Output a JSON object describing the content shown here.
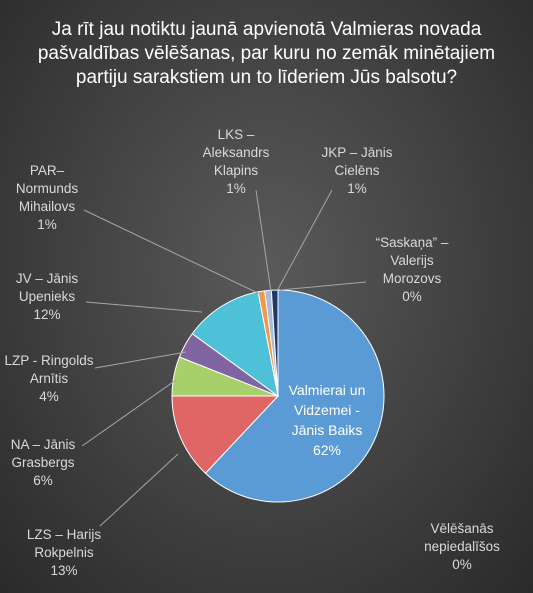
{
  "chart_data": {
    "type": "pie",
    "title_lines": [
      "Ja rīt jau notiktu jaunā apvienotā Valmieras novada",
      "pašvaldības vēlēšanas, par kuru no zemāk minētajiem",
      "partiju sarakstiem un to līderiem Jūs balsotu?"
    ],
    "slices": [
      {
        "label_lines": [
          "Valmierai un",
          "Vidzemei -",
          "Jānis Baiks"
        ],
        "value": 62,
        "value_label": "62%",
        "color": "#5b9bd5"
      },
      {
        "label_lines": [
          "LZS – Harijs",
          "Rokpelnis"
        ],
        "value": 13,
        "value_label": "13%",
        "color": "#e06666"
      },
      {
        "label_lines": [
          "NA – Jānis",
          "Grasbergs"
        ],
        "value": 6,
        "value_label": "6%",
        "color": "#a7d06a"
      },
      {
        "label_lines": [
          "LZP - Ringolds",
          "Arnītis"
        ],
        "value": 4,
        "value_label": "4%",
        "color": "#8064a2"
      },
      {
        "label_lines": [
          "JV –  Jānis",
          "Upenieks"
        ],
        "value": 12,
        "value_label": "12%",
        "color": "#4ec0d8"
      },
      {
        "label_lines": [
          "PAR–",
          "Normunds",
          "Mihailovs"
        ],
        "value": 1,
        "value_label": "1%",
        "color": "#f79646"
      },
      {
        "label_lines": [
          "LKS –",
          "Aleksandrs",
          "Klapins"
        ],
        "value": 1,
        "value_label": "1%",
        "color": "#a6bcd9"
      },
      {
        "label_lines": [
          "JKP – Jānis",
          "Cielēns"
        ],
        "value": 1,
        "value_label": "1%",
        "color": "#1f3864"
      },
      {
        "label_lines": [
          "“Saskaņa” –",
          "Valerijs",
          "Morozovs"
        ],
        "value": 0,
        "value_label": "0%",
        "color": "#9c2b2b"
      },
      {
        "label_lines": [
          "Vēlēšanās",
          "nepiedalīšos"
        ],
        "value": 0,
        "value_label": "0%",
        "color": "#7f7f7f"
      }
    ]
  }
}
